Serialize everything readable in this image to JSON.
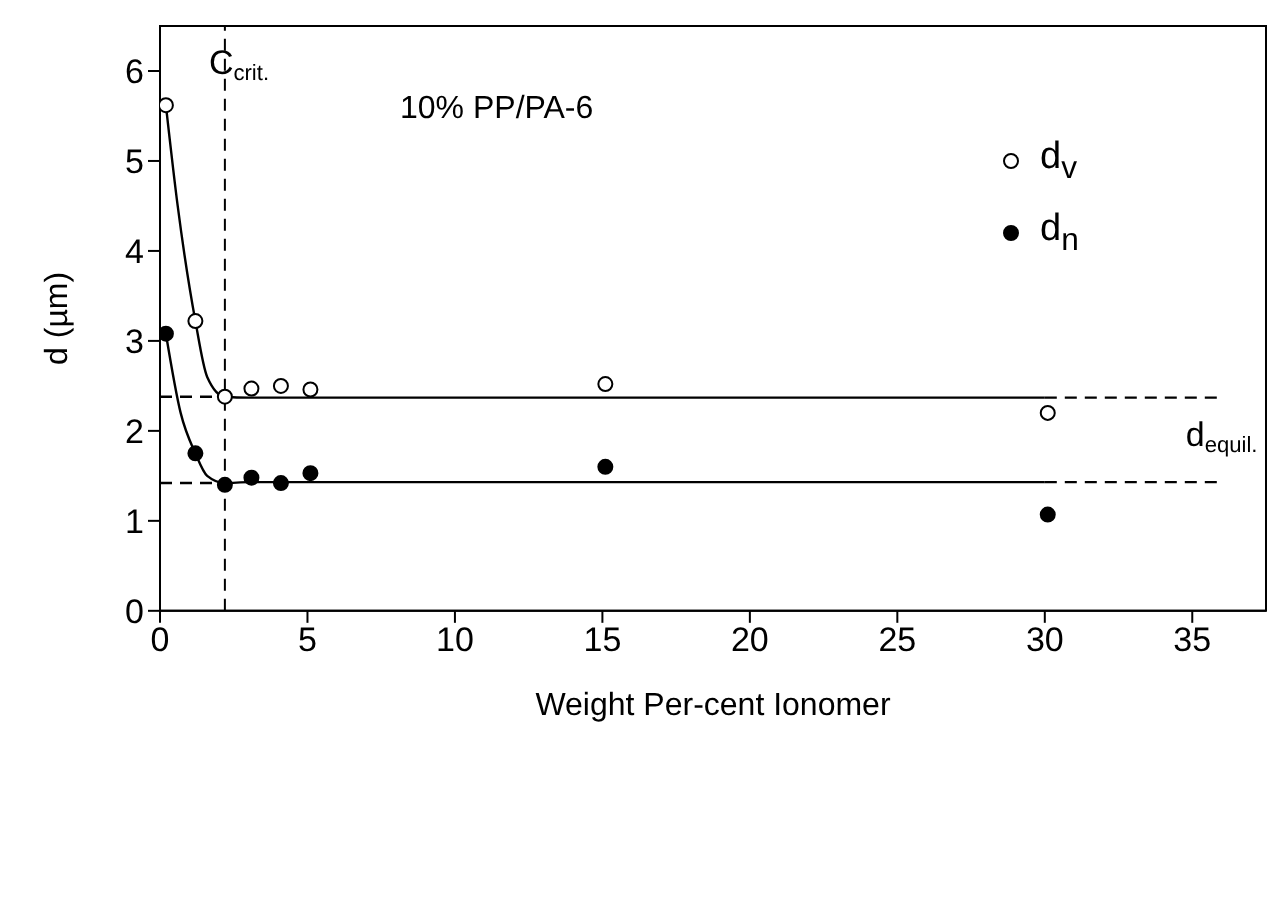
{
  "chart_data": {
    "type": "scatter",
    "xlabel": "Weight Per-cent Ionomer",
    "ylabel": "d (µm)",
    "xlim": [
      0,
      37.5
    ],
    "ylim": [
      0,
      6.5
    ],
    "xticks": [
      0,
      5,
      10,
      15,
      20,
      25,
      30,
      35
    ],
    "yticks": [
      0,
      1,
      2,
      3,
      4,
      5,
      6
    ],
    "grid": false,
    "legend": "top right",
    "series": [
      {
        "name": "d$_{v}$",
        "color": "#000000",
        "marker": "circle-open",
        "x": [
          0.2,
          1.2,
          2.2,
          3.1,
          4.1,
          5.1,
          15.1,
          30.1
        ],
        "values": [
          5.62,
          3.22,
          2.38,
          2.47,
          2.5,
          2.46,
          2.52,
          2.2
        ]
      },
      {
        "name": "d$_{n}$",
        "color": "#000000",
        "marker": "circle",
        "x": [
          0.2,
          1.2,
          2.2,
          3.1,
          4.1,
          5.1,
          15.1,
          30.1
        ],
        "values": [
          3.08,
          1.75,
          1.4,
          1.48,
          1.42,
          1.53,
          1.6,
          1.07
        ]
      },
      {
        "type": "line",
        "color": "#000000",
        "marker": "none",
        "line_style": "solid",
        "x": [
          0.2,
          0.6,
          1.2,
          1.6,
          2.2,
          3,
          30
        ],
        "values": [
          5.62,
          4.5,
          3.22,
          2.6,
          2.38,
          2.37,
          2.37
        ]
      },
      {
        "type": "line",
        "color": "#000000",
        "marker": "none",
        "line_style": "solid",
        "x": [
          0.2,
          0.7,
          1.2,
          1.6,
          2.2,
          3,
          30
        ],
        "values": [
          3.08,
          2.2,
          1.75,
          1.5,
          1.42,
          1.43,
          1.43
        ]
      },
      {
        "type": "line",
        "color": "#000000",
        "marker": "none",
        "line_style": "dashed",
        "x": [
          0,
          2.2,
          2.3,
          30,
          36
        ],
        "values": [
          2.38,
          2.38,
          null,
          2.37,
          2.37
        ]
      },
      {
        "type": "line",
        "color": "#000000",
        "marker": "none",
        "line_style": "dashed",
        "x": [
          0,
          2.2,
          2.3,
          30,
          36
        ],
        "values": [
          1.42,
          1.42,
          null,
          1.43,
          1.43
        ]
      }
    ],
    "ref_lines": [
      {
        "axis": "x",
        "value": 2.2,
        "label": "C$_{crit.}$",
        "color": "#000000",
        "line_style": "dashed"
      }
    ],
    "annotations": [
      "10% PP/PA-6",
      {
        "text": "d$_{equil.}$",
        "x": 36,
        "y": 2.37
      }
    ]
  }
}
